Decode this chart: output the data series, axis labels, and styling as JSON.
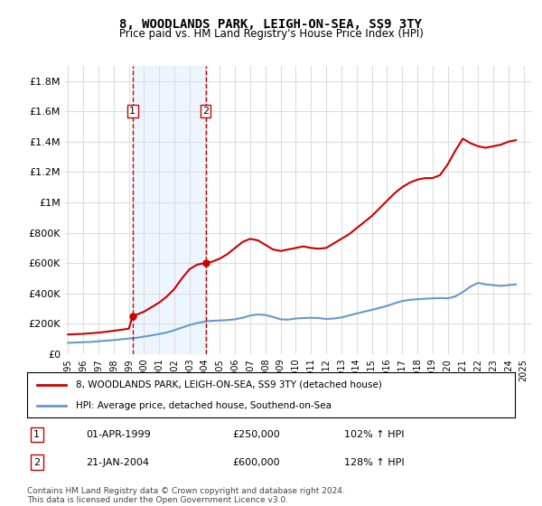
{
  "title": "8, WOODLANDS PARK, LEIGH-ON-SEA, SS9 3TY",
  "subtitle": "Price paid vs. HM Land Registry's House Price Index (HPI)",
  "legend_line1": "8, WOODLANDS PARK, LEIGH-ON-SEA, SS9 3TY (detached house)",
  "legend_line2": "HPI: Average price, detached house, Southend-on-Sea",
  "footnote": "Contains HM Land Registry data © Crown copyright and database right 2024.\nThis data is licensed under the Open Government Licence v3.0.",
  "transactions": [
    {
      "id": 1,
      "date": "01-APR-1999",
      "price": 250000,
      "pct": "102%",
      "dir": "↑"
    },
    {
      "id": 2,
      "date": "21-JAN-2004",
      "price": 600000,
      "pct": "128%",
      "dir": "↑"
    }
  ],
  "transaction_dates_num": [
    1999.25,
    2004.055
  ],
  "transaction_prices": [
    250000,
    600000
  ],
  "red_color": "#cc0000",
  "blue_color": "#6699cc",
  "dashed_color": "#cc0000",
  "shade_color": "#ddeeff",
  "marker_box_color": "#cc0000",
  "grid_color": "#dddddd",
  "ylim": [
    0,
    1900000
  ],
  "yticks": [
    0,
    200000,
    400000,
    600000,
    800000,
    1000000,
    1200000,
    1400000,
    1600000,
    1800000
  ],
  "ytick_labels": [
    "£0",
    "£200K",
    "£400K",
    "£600K",
    "£800K",
    "£1M",
    "£1.2M",
    "£1.4M",
    "£1.6M",
    "£1.8M"
  ],
  "hpi_years": [
    1995,
    1995.5,
    1996,
    1996.5,
    1997,
    1997.5,
    1998,
    1998.5,
    1999,
    1999.5,
    2000,
    2000.5,
    2001,
    2001.5,
    2002,
    2002.5,
    2003,
    2003.5,
    2004,
    2004.5,
    2005,
    2005.5,
    2006,
    2006.5,
    2007,
    2007.5,
    2008,
    2008.5,
    2009,
    2009.5,
    2010,
    2010.5,
    2011,
    2011.5,
    2012,
    2012.5,
    2013,
    2013.5,
    2014,
    2014.5,
    2015,
    2015.5,
    2016,
    2016.5,
    2017,
    2017.5,
    2018,
    2018.5,
    2019,
    2019.5,
    2020,
    2020.5,
    2021,
    2021.5,
    2022,
    2022.5,
    2023,
    2023.5,
    2024,
    2024.5
  ],
  "hpi_values": [
    75000,
    77000,
    79000,
    81000,
    85000,
    89000,
    93000,
    98000,
    103000,
    108000,
    116000,
    124000,
    133000,
    143000,
    158000,
    175000,
    192000,
    205000,
    215000,
    220000,
    222000,
    225000,
    230000,
    240000,
    255000,
    262000,
    258000,
    245000,
    230000,
    228000,
    235000,
    238000,
    240000,
    238000,
    232000,
    235000,
    242000,
    255000,
    268000,
    280000,
    292000,
    305000,
    318000,
    335000,
    350000,
    358000,
    362000,
    365000,
    368000,
    370000,
    368000,
    380000,
    410000,
    445000,
    470000,
    460000,
    455000,
    450000,
    455000,
    460000
  ],
  "red_years": [
    1995,
    1995.5,
    1996,
    1996.5,
    1997,
    1997.5,
    1998,
    1998.5,
    1999,
    1999.25,
    1999.5,
    2000,
    2000.5,
    2001,
    2001.5,
    2002,
    2002.5,
    2003,
    2003.5,
    2004,
    2004.055,
    2004.5,
    2005,
    2005.5,
    2006,
    2006.5,
    2007,
    2007.5,
    2008,
    2008.5,
    2009,
    2009.5,
    2010,
    2010.5,
    2011,
    2011.5,
    2012,
    2012.5,
    2013,
    2013.5,
    2014,
    2014.5,
    2015,
    2015.5,
    2016,
    2016.5,
    2017,
    2017.5,
    2018,
    2018.5,
    2019,
    2019.5,
    2020,
    2020.5,
    2021,
    2021.5,
    2022,
    2022.5,
    2023,
    2023.5,
    2024,
    2024.5
  ],
  "red_values": [
    130000,
    132000,
    134000,
    138000,
    142000,
    148000,
    154000,
    161000,
    168000,
    250000,
    260000,
    280000,
    310000,
    340000,
    380000,
    430000,
    500000,
    560000,
    590000,
    600000,
    600000,
    610000,
    630000,
    660000,
    700000,
    740000,
    760000,
    750000,
    720000,
    690000,
    680000,
    690000,
    700000,
    710000,
    700000,
    695000,
    700000,
    730000,
    760000,
    790000,
    830000,
    870000,
    910000,
    960000,
    1010000,
    1060000,
    1100000,
    1130000,
    1150000,
    1160000,
    1160000,
    1180000,
    1250000,
    1340000,
    1420000,
    1390000,
    1370000,
    1360000,
    1370000,
    1380000,
    1400000,
    1410000
  ],
  "xlim_left": 1994.8,
  "xlim_right": 2025.5,
  "xtick_years": [
    1995,
    1996,
    1997,
    1998,
    1999,
    2000,
    2001,
    2002,
    2003,
    2004,
    2005,
    2006,
    2007,
    2008,
    2009,
    2010,
    2011,
    2012,
    2013,
    2014,
    2015,
    2016,
    2017,
    2018,
    2019,
    2020,
    2021,
    2022,
    2023,
    2024,
    2025
  ]
}
